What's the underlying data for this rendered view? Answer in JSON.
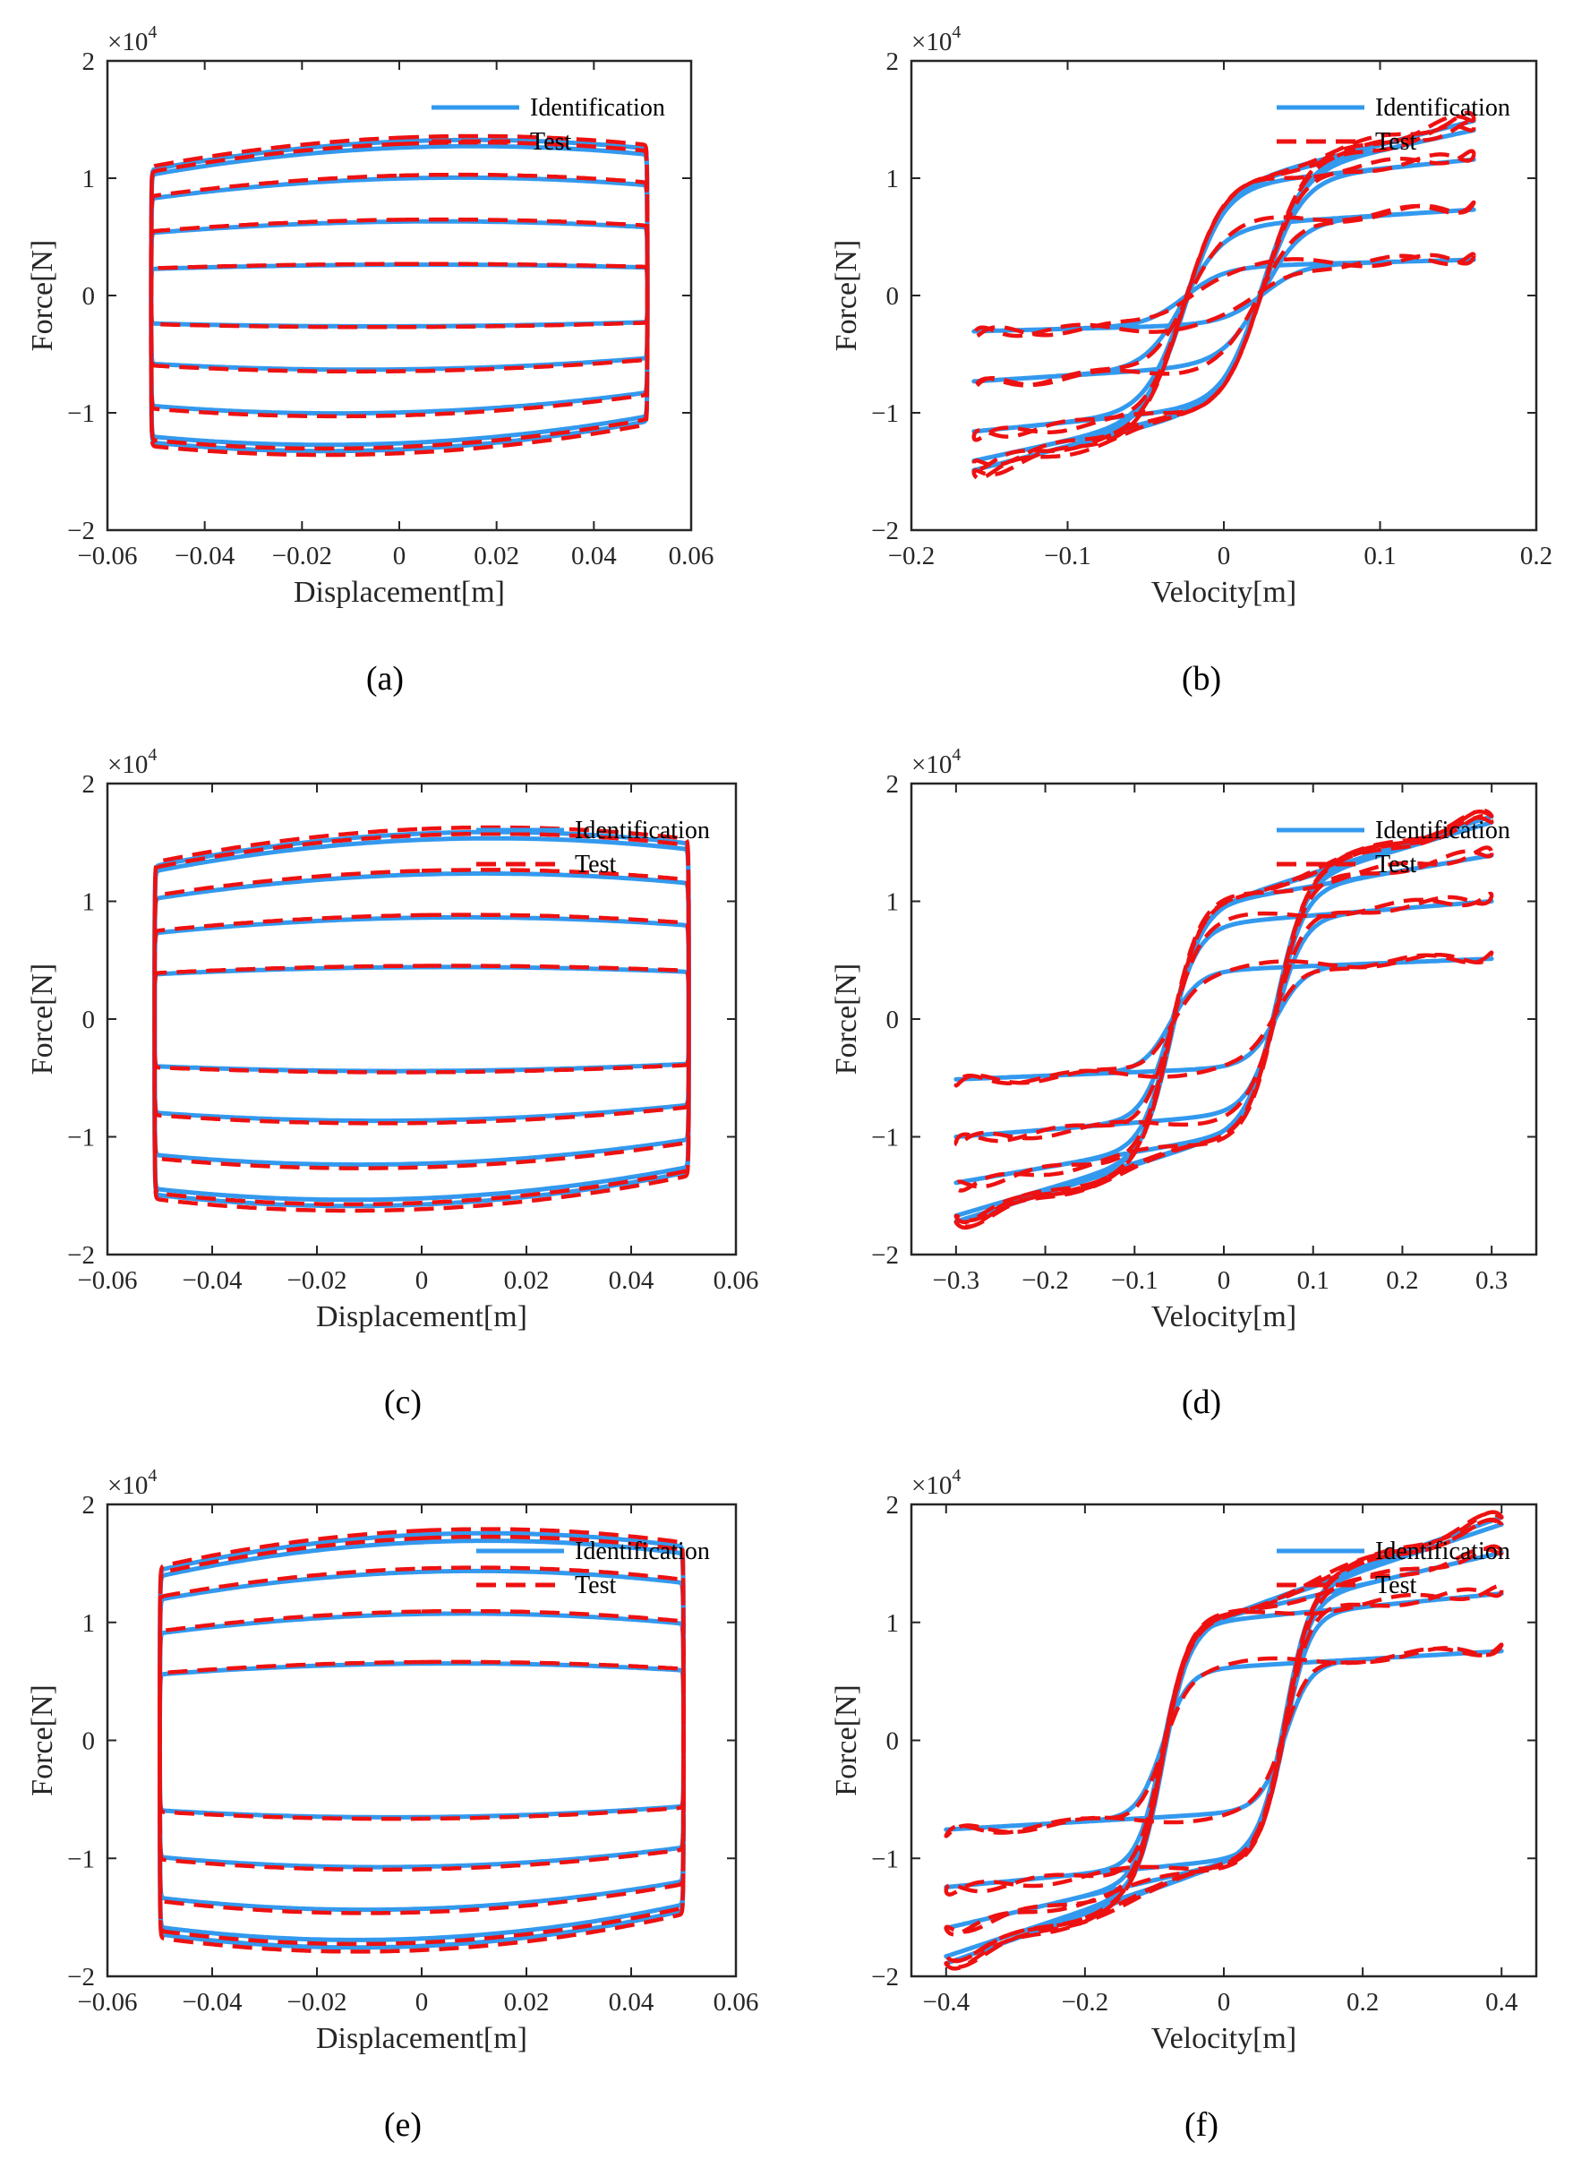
{
  "colors": {
    "identification": "#3399ee",
    "test": "#ee1111",
    "axis": "#262626"
  },
  "chart_data": [
    {
      "id": "a",
      "caption": "(a)",
      "type": "line",
      "xlabel": "Displacement[m]",
      "ylabel": "Force[N]",
      "y_multiplier": "×10",
      "y_multiplier_exp": "4",
      "xlim": [
        -0.06,
        0.06
      ],
      "ylim": [
        -2,
        2
      ],
      "xticks": [
        -0.06,
        -0.04,
        -0.02,
        0,
        0.02,
        0.04,
        0.06
      ],
      "xtick_labels": [
        "−0.06",
        "−0.04",
        "−0.02",
        "0",
        "0.02",
        "0.04",
        "0.06"
      ],
      "yticks": [
        -2,
        -1,
        0,
        1,
        2
      ],
      "ytick_labels": [
        "−2",
        "−1",
        "0",
        "1",
        "2"
      ],
      "legend": [
        "Identification",
        "Test"
      ],
      "legend_position": "top-right",
      "kind": "force-displacement",
      "x_amplitude": 0.051,
      "loops": [
        {
          "amplitude": 0.25,
          "skew": 0.06
        },
        {
          "amplitude": 0.6,
          "skew": 0.1
        },
        {
          "amplitude": 0.95,
          "skew": 0.15
        },
        {
          "amplitude": 1.2,
          "skew": 0.18
        },
        {
          "amplitude": 1.25,
          "skew": 0.18
        }
      ],
      "test_scale": 1.025
    },
    {
      "id": "b",
      "caption": "(b)",
      "type": "line",
      "xlabel": "Velocity[m]",
      "ylabel": "Force[N]",
      "y_multiplier": "×10",
      "y_multiplier_exp": "4",
      "xlim": [
        -0.2,
        0.2
      ],
      "ylim": [
        -2,
        2
      ],
      "xticks": [
        -0.2,
        -0.1,
        0,
        0.1,
        0.2
      ],
      "xtick_labels": [
        "−0.2",
        "−0.1",
        "0",
        "0.1",
        "0.2"
      ],
      "yticks": [
        -2,
        -1,
        0,
        1,
        2
      ],
      "ytick_labels": [
        "−2",
        "−1",
        "0",
        "1",
        "2"
      ],
      "legend": [
        "Identification",
        "Test"
      ],
      "legend_position": "top-right",
      "kind": "force-velocity",
      "v_max": 0.16,
      "yield_force": 0.95,
      "hysteresis_width": 0.025,
      "loops": [
        {
          "amplitude": 0.25
        },
        {
          "amplitude": 0.6
        },
        {
          "amplitude": 0.95
        },
        {
          "amplitude": 1.2
        },
        {
          "amplitude": 1.28
        }
      ],
      "test_scale": 1.03
    },
    {
      "id": "c",
      "caption": "(c)",
      "type": "line",
      "xlabel": "Displacement[m]",
      "ylabel": "Force[N]",
      "y_multiplier": "×10",
      "y_multiplier_exp": "4",
      "xlim": [
        -0.06,
        0.06
      ],
      "ylim": [
        -2,
        2
      ],
      "xticks": [
        -0.06,
        -0.04,
        -0.02,
        0,
        0.02,
        0.04,
        0.06
      ],
      "xtick_labels": [
        "−0.06",
        "−0.04",
        "−0.02",
        "0",
        "0.02",
        "0.04",
        "0.06"
      ],
      "yticks": [
        -2,
        -1,
        0,
        1,
        2
      ],
      "ytick_labels": [
        "−2",
        "−1",
        "0",
        "1",
        "2"
      ],
      "legend": [
        "Identification",
        "Test"
      ],
      "legend_position": "top-right",
      "kind": "force-displacement",
      "x_amplitude": 0.051,
      "loops": [
        {
          "amplitude": 0.42,
          "skew": 0.06
        },
        {
          "amplitude": 0.82,
          "skew": 0.1
        },
        {
          "amplitude": 1.17,
          "skew": 0.14
        },
        {
          "amplitude": 1.45,
          "skew": 0.16
        },
        {
          "amplitude": 1.5,
          "skew": 0.16
        }
      ],
      "test_scale": 1.025
    },
    {
      "id": "d",
      "caption": "(d)",
      "type": "line",
      "xlabel": "Velocity[m]",
      "ylabel": "Force[N]",
      "y_multiplier": "×10",
      "y_multiplier_exp": "4",
      "xlim": [
        -0.35,
        0.35
      ],
      "ylim": [
        -2,
        2
      ],
      "xticks": [
        -0.3,
        -0.2,
        -0.1,
        0,
        0.1,
        0.2,
        0.3
      ],
      "xtick_labels": [
        "−0.3",
        "−0.2",
        "−0.1",
        "0",
        "0.1",
        "0.2",
        "0.3"
      ],
      "yticks": [
        -2,
        -1,
        0,
        1,
        2
      ],
      "ytick_labels": [
        "−2",
        "−1",
        "0",
        "1",
        "2"
      ],
      "legend": [
        "Identification",
        "Test"
      ],
      "legend_position": "top-right",
      "kind": "force-velocity",
      "v_max": 0.3,
      "yield_force": 1.0,
      "hysteresis_width": 0.06,
      "loops": [
        {
          "amplitude": 0.42
        },
        {
          "amplitude": 0.82
        },
        {
          "amplitude": 1.17
        },
        {
          "amplitude": 1.45
        },
        {
          "amplitude": 1.5
        }
      ],
      "test_scale": 1.025
    },
    {
      "id": "e",
      "caption": "(e)",
      "type": "line",
      "xlabel": "Displacement[m]",
      "ylabel": "Force[N]",
      "y_multiplier": "×10",
      "y_multiplier_exp": "4",
      "xlim": [
        -0.06,
        0.06
      ],
      "ylim": [
        -2,
        2
      ],
      "xticks": [
        -0.06,
        -0.04,
        -0.02,
        0,
        0.02,
        0.04,
        0.06
      ],
      "xtick_labels": [
        "−0.06",
        "−0.04",
        "−0.02",
        "0",
        "0.02",
        "0.04",
        "0.06"
      ],
      "yticks": [
        -2,
        -1,
        0,
        1,
        2
      ],
      "ytick_labels": [
        "−2",
        "−1",
        "0",
        "1",
        "2"
      ],
      "legend": [
        "Identification",
        "Test"
      ],
      "legend_position": "top-right",
      "kind": "force-displacement",
      "x_amplitude": 0.05,
      "loops": [
        {
          "amplitude": 0.62,
          "skew": 0.07
        },
        {
          "amplitude": 1.02,
          "skew": 0.1
        },
        {
          "amplitude": 1.36,
          "skew": 0.13
        },
        {
          "amplitude": 1.6,
          "skew": 0.15
        },
        {
          "amplitude": 1.66,
          "skew": 0.15
        }
      ],
      "test_scale": 1.02
    },
    {
      "id": "f",
      "caption": "(f)",
      "type": "line",
      "xlabel": "Velocity[m]",
      "ylabel": "Force[N]",
      "y_multiplier": "×10",
      "y_multiplier_exp": "4",
      "xlim": [
        -0.45,
        0.45
      ],
      "ylim": [
        -2,
        2
      ],
      "xticks": [
        -0.4,
        -0.2,
        0,
        0.2,
        0.4
      ],
      "xtick_labels": [
        "−0.4",
        "−0.2",
        "0",
        "0.2",
        "0.4"
      ],
      "yticks": [
        -2,
        -1,
        0,
        1,
        2
      ],
      "ytick_labels": [
        "−2",
        "−1",
        "0",
        "1",
        "2"
      ],
      "legend": [
        "Identification",
        "Test"
      ],
      "legend_position": "top-right",
      "kind": "force-velocity",
      "v_max": 0.4,
      "yield_force": 1.05,
      "hysteresis_width": 0.09,
      "loops": [
        {
          "amplitude": 0.62
        },
        {
          "amplitude": 1.02
        },
        {
          "amplitude": 1.36
        },
        {
          "amplitude": 1.6
        },
        {
          "amplitude": 1.66
        }
      ],
      "test_scale": 1.02
    }
  ]
}
